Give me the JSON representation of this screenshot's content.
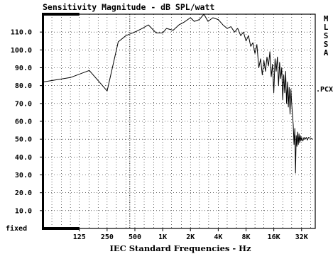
{
  "chart_data": {
    "type": "line",
    "title": "Sensitivity Magnitude - dB SPL/watt",
    "xlabel": "IEC Standard Frequencies - Hz",
    "ylabel": "",
    "x_scale": "log",
    "xlim": [
      50,
      45000
    ],
    "ylim": [
      0,
      120
    ],
    "grid": true,
    "y_ticks": [
      {
        "value": 110,
        "label": "110.0"
      },
      {
        "value": 100,
        "label": "100.0"
      },
      {
        "value": 90,
        "label": "90.0"
      },
      {
        "value": 80,
        "label": "80.0"
      },
      {
        "value": 70,
        "label": "70.0"
      },
      {
        "value": 60,
        "label": "60.0"
      },
      {
        "value": 50,
        "label": "50.0"
      },
      {
        "value": 40,
        "label": "40.0"
      },
      {
        "value": 30,
        "label": "30.0"
      },
      {
        "value": 20,
        "label": "20.0"
      },
      {
        "value": 10,
        "label": "10.0"
      }
    ],
    "y_bottom_label": "fixed",
    "x_ticks": [
      {
        "value": 125,
        "label": "125"
      },
      {
        "value": 250,
        "label": "250"
      },
      {
        "value": 500,
        "label": "500"
      },
      {
        "value": 1000,
        "label": "1K"
      },
      {
        "value": 2000,
        "label": "2K"
      },
      {
        "value": 4000,
        "label": "4K"
      },
      {
        "value": 8000,
        "label": "8K"
      },
      {
        "value": 16000,
        "label": "16K"
      },
      {
        "value": 32000,
        "label": "32K"
      }
    ],
    "x_minor_ticks": [
      63,
      80,
      100,
      160,
      200,
      315,
      400,
      630,
      800,
      1250,
      1600,
      2500,
      3150,
      5000,
      6300,
      10000,
      12500,
      20000,
      25000,
      40000
    ],
    "markers": {
      "dotted_vertical_x": 440,
      "top_bar_x": [
        50,
        125
      ],
      "bottom_bar_x": [
        50,
        125
      ]
    },
    "side_labels": [
      "M",
      "L",
      "S",
      "S",
      "A"
    ],
    "right_label": ".PCX",
    "colors": {
      "line": "#000000",
      "grid": "#000000",
      "background": "#ffffff"
    },
    "series": [
      {
        "values": [
          [
            50,
            82
          ],
          [
            100,
            84.5
          ],
          [
            160,
            88.5
          ],
          [
            250,
            77
          ],
          [
            330,
            104.5
          ],
          [
            400,
            108
          ],
          [
            500,
            110
          ],
          [
            600,
            112
          ],
          [
            700,
            114
          ],
          [
            850,
            109.5
          ],
          [
            1000,
            109.5
          ],
          [
            1100,
            112
          ],
          [
            1300,
            111
          ],
          [
            1500,
            114
          ],
          [
            1700,
            115.5
          ],
          [
            2000,
            118
          ],
          [
            2200,
            116
          ],
          [
            2500,
            117
          ],
          [
            2800,
            121
          ],
          [
            3100,
            116
          ],
          [
            3500,
            118
          ],
          [
            4000,
            117
          ],
          [
            4500,
            114
          ],
          [
            5000,
            112
          ],
          [
            5500,
            113
          ],
          [
            6000,
            110
          ],
          [
            6500,
            112
          ],
          [
            7000,
            108
          ],
          [
            7500,
            110
          ],
          [
            8000,
            105
          ],
          [
            8500,
            108
          ],
          [
            9000,
            102
          ],
          [
            9500,
            104
          ],
          [
            10000,
            98
          ],
          [
            10500,
            103
          ],
          [
            11000,
            90
          ],
          [
            11500,
            95
          ],
          [
            12000,
            86
          ],
          [
            12500,
            94
          ],
          [
            13000,
            88
          ],
          [
            13500,
            96
          ],
          [
            14000,
            91
          ],
          [
            14500,
            99
          ],
          [
            15000,
            85
          ],
          [
            15500,
            92
          ],
          [
            16000,
            76
          ],
          [
            16500,
            95
          ],
          [
            17000,
            88
          ],
          [
            17500,
            96
          ],
          [
            18000,
            80
          ],
          [
            18500,
            93
          ],
          [
            19000,
            84
          ],
          [
            19500,
            90
          ],
          [
            20000,
            72
          ],
          [
            20500,
            86
          ],
          [
            21000,
            76
          ],
          [
            21500,
            88
          ],
          [
            22000,
            70
          ],
          [
            22500,
            82
          ],
          [
            23000,
            68
          ],
          [
            23500,
            79
          ],
          [
            24000,
            64
          ],
          [
            24500,
            78
          ],
          [
            25000,
            70
          ],
          [
            25500,
            64
          ],
          [
            26000,
            58
          ],
          [
            26500,
            47
          ],
          [
            27000,
            56
          ],
          [
            27500,
            31
          ],
          [
            28000,
            52
          ],
          [
            28500,
            46
          ],
          [
            29000,
            54
          ],
          [
            29500,
            47
          ],
          [
            30000,
            53
          ],
          [
            30500,
            48
          ],
          [
            31000,
            52
          ],
          [
            31500,
            49
          ],
          [
            32000,
            51
          ],
          [
            33000,
            49
          ],
          [
            34000,
            51
          ],
          [
            35000,
            50
          ],
          [
            36000,
            51
          ],
          [
            37000,
            49.5
          ],
          [
            38000,
            51
          ],
          [
            40000,
            50.5
          ],
          [
            42000,
            50
          ]
        ]
      }
    ]
  }
}
